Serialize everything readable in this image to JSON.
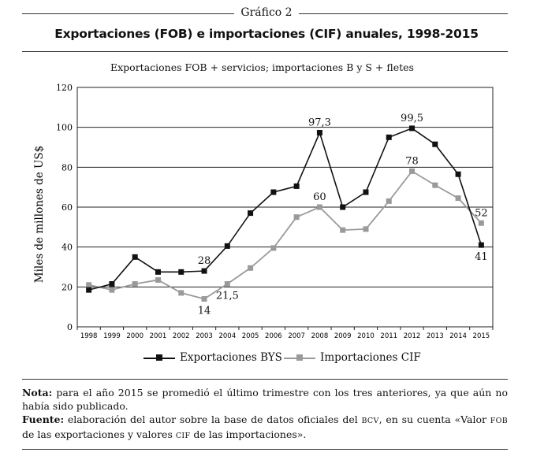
{
  "header": {
    "graf_label": "Gráfico 2",
    "title": "Exportaciones (FOB) e importaciones (CIF) anuales, 1998-2015"
  },
  "chart_data": {
    "type": "line",
    "subtitle": "Exportaciones FOB + servicios; importaciones B y S + fletes",
    "ylabel": "Miles de millones de US$",
    "ylim": [
      0,
      120
    ],
    "yticks": [
      "0",
      "20",
      "40",
      "60",
      "80",
      "100",
      "120"
    ],
    "grid": true,
    "categories": [
      "1998",
      "1999",
      "2000",
      "2001",
      "2002",
      "2003",
      "2004",
      "2005",
      "2006",
      "2007",
      "2008",
      "2009",
      "2010",
      "2011",
      "2012",
      "2013",
      "2014",
      "2015"
    ],
    "series": [
      {
        "name": "Exportaciones BYS",
        "color": "#111111",
        "marker": "square",
        "values": [
          18.5,
          21.5,
          35,
          27.5,
          27.5,
          28,
          40.5,
          57,
          67.5,
          70.5,
          97.3,
          60,
          67.5,
          95,
          99.5,
          91.5,
          76.5,
          41
        ]
      },
      {
        "name": "Importaciones CIF",
        "color": "#9a9a9a",
        "marker": "square",
        "values": [
          21,
          18.5,
          21.5,
          23.5,
          17,
          14,
          21.5,
          29.5,
          39.5,
          55,
          60,
          48.5,
          49,
          63,
          78,
          71,
          64.5,
          52
        ]
      }
    ],
    "annotations": [
      {
        "series": 0,
        "index": 5,
        "text": "28",
        "pos": "above"
      },
      {
        "series": 0,
        "index": 10,
        "text": "97,3",
        "pos": "above"
      },
      {
        "series": 0,
        "index": 14,
        "text": "99,5",
        "pos": "above"
      },
      {
        "series": 0,
        "index": 17,
        "text": "41",
        "pos": "below"
      },
      {
        "series": 1,
        "index": 5,
        "text": "14",
        "pos": "below"
      },
      {
        "series": 1,
        "index": 6,
        "text": "21,5",
        "pos": "below"
      },
      {
        "series": 1,
        "index": 10,
        "text": "60",
        "pos": "above"
      },
      {
        "series": 1,
        "index": 14,
        "text": "78",
        "pos": "above"
      },
      {
        "series": 1,
        "index": 17,
        "text": "52",
        "pos": "above"
      }
    ],
    "legend": {
      "position": "bottom-center"
    }
  },
  "notes": {
    "note_label": "Nota:",
    "note_text": " para el año 2015 se promedió el último trimestre con los tres anteriores, ya que aún no había sido publicado.",
    "source_label": "Fuente:",
    "source_text_1": " elaboración del autor sobre la base de datos oficiales del ",
    "source_bcv": "bcv",
    "source_text_2": ", en su cuenta «Valor ",
    "source_fob": "fob",
    "source_text_3": " de las exportaciones y valores ",
    "source_cif": "cif",
    "source_text_4": " de las importaciones»."
  }
}
